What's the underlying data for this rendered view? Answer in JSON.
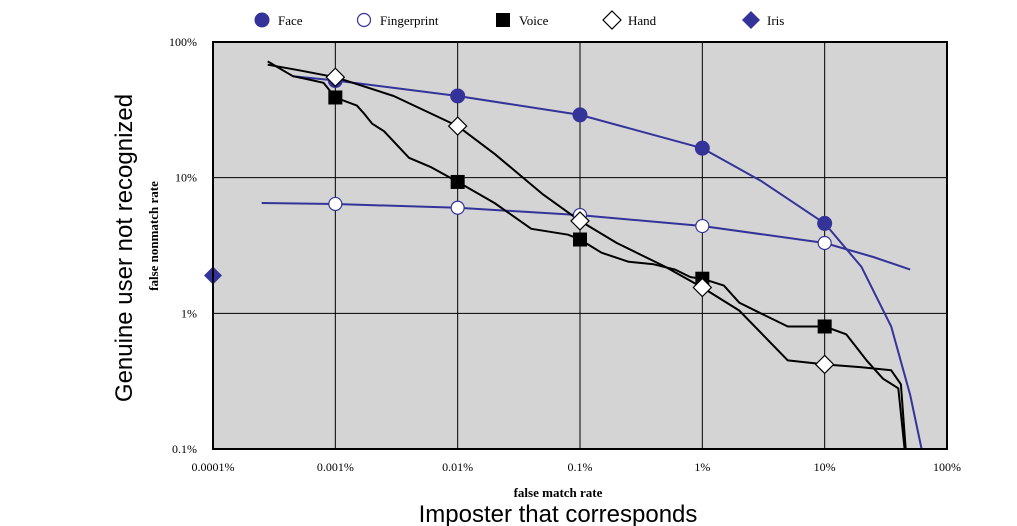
{
  "chart_data": {
    "type": "line",
    "title": "",
    "xlabel": "false match rate",
    "ylabel": "false nonmatch rate",
    "xlabel_secondary": "Imposter that corresponds",
    "ylabel_secondary": "Genuine user not recognized",
    "x_scale": "log",
    "y_scale": "log",
    "xlim": [
      0.0001,
      100
    ],
    "ylim": [
      0.1,
      100
    ],
    "grid": true,
    "legend_position": "top",
    "x_ticks": [
      {
        "value": 0.0001,
        "label": "0.0001%"
      },
      {
        "value": 0.001,
        "label": "0.001%"
      },
      {
        "value": 0.01,
        "label": "0.01%"
      },
      {
        "value": 0.1,
        "label": "0.1%"
      },
      {
        "value": 1,
        "label": "1%"
      },
      {
        "value": 10,
        "label": "10%"
      },
      {
        "value": 100,
        "label": "100%"
      }
    ],
    "y_ticks": [
      {
        "value": 100,
        "label": "100%"
      },
      {
        "value": 10,
        "label": "10%"
      },
      {
        "value": 1,
        "label": "1%"
      },
      {
        "value": 0.1,
        "label": "0.1%"
      }
    ],
    "series": [
      {
        "name": "Face",
        "marker": "filled-circle",
        "color": "#333399",
        "marker_color": "#333399",
        "line_color": "#333399",
        "points": [
          [
            0.001,
            52
          ],
          [
            0.01,
            40
          ],
          [
            0.1,
            29
          ],
          [
            1,
            16.5
          ],
          [
            10,
            4.6
          ]
        ],
        "curve": [
          [
            0.00045,
            56
          ],
          [
            0.001,
            52
          ],
          [
            0.01,
            40
          ],
          [
            0.1,
            29
          ],
          [
            1,
            16.5
          ],
          [
            3,
            9.5
          ],
          [
            10,
            4.6
          ],
          [
            20,
            2.2
          ],
          [
            35,
            0.8
          ],
          [
            50,
            0.25
          ],
          [
            62,
            0.1
          ]
        ]
      },
      {
        "name": "Fingerprint",
        "marker": "open-circle",
        "color": "#333399",
        "marker_color": "#333399",
        "line_color": "#333399",
        "points": [
          [
            0.001,
            6.4
          ],
          [
            0.01,
            6.0
          ],
          [
            0.1,
            5.3
          ],
          [
            1,
            4.4
          ],
          [
            10,
            3.3
          ]
        ],
        "curve": [
          [
            0.00025,
            6.5
          ],
          [
            0.001,
            6.4
          ],
          [
            0.01,
            6.0
          ],
          [
            0.1,
            5.3
          ],
          [
            1,
            4.4
          ],
          [
            10,
            3.3
          ],
          [
            25,
            2.6
          ],
          [
            50,
            2.1
          ]
        ]
      },
      {
        "name": "Voice",
        "marker": "filled-square",
        "color": "#000000",
        "marker_color": "#000000",
        "line_color": "#000000",
        "points": [
          [
            0.001,
            39
          ],
          [
            0.01,
            9.3
          ],
          [
            0.1,
            3.5
          ],
          [
            1,
            1.8
          ],
          [
            10,
            0.8
          ]
        ],
        "curve": [
          [
            0.00028,
            72
          ],
          [
            0.00045,
            56
          ],
          [
            0.0006,
            53
          ],
          [
            0.0008,
            50
          ],
          [
            0.001,
            39
          ],
          [
            0.0015,
            34
          ],
          [
            0.0017,
            30
          ],
          [
            0.002,
            25
          ],
          [
            0.0025,
            22
          ],
          [
            0.004,
            14
          ],
          [
            0.006,
            12
          ],
          [
            0.01,
            9.3
          ],
          [
            0.02,
            6.5
          ],
          [
            0.04,
            4.2
          ],
          [
            0.08,
            3.8
          ],
          [
            0.1,
            3.5
          ],
          [
            0.15,
            2.8
          ],
          [
            0.25,
            2.4
          ],
          [
            0.4,
            2.3
          ],
          [
            0.6,
            2.1
          ],
          [
            0.8,
            1.85
          ],
          [
            1,
            1.8
          ],
          [
            1.5,
            1.6
          ],
          [
            2,
            1.2
          ],
          [
            3,
            1.0
          ],
          [
            5,
            0.8
          ],
          [
            10,
            0.8
          ],
          [
            15,
            0.7
          ],
          [
            22,
            0.45
          ],
          [
            30,
            0.33
          ],
          [
            40,
            0.28
          ],
          [
            45,
            0.1
          ]
        ]
      },
      {
        "name": "Hand",
        "marker": "open-diamond",
        "color": "#000000",
        "marker_color": "#000000",
        "line_color": "#000000",
        "points": [
          [
            0.001,
            55
          ],
          [
            0.01,
            24
          ],
          [
            0.1,
            4.8
          ],
          [
            1,
            1.55
          ],
          [
            10,
            0.42
          ]
        ],
        "curve": [
          [
            0.00028,
            68
          ],
          [
            0.0005,
            62
          ],
          [
            0.001,
            55
          ],
          [
            0.003,
            40
          ],
          [
            0.01,
            24
          ],
          [
            0.02,
            15
          ],
          [
            0.05,
            7.5
          ],
          [
            0.1,
            4.8
          ],
          [
            0.2,
            3.3
          ],
          [
            0.5,
            2.2
          ],
          [
            1,
            1.55
          ],
          [
            2,
            1.05
          ],
          [
            5,
            0.45
          ],
          [
            10,
            0.42
          ],
          [
            20,
            0.4
          ],
          [
            35,
            0.38
          ],
          [
            42,
            0.3
          ],
          [
            46,
            0.1
          ]
        ]
      },
      {
        "name": "Iris",
        "marker": "filled-diamond",
        "color": "#333399",
        "marker_color": "#333399",
        "points": [
          [
            0.0001,
            1.9
          ]
        ]
      }
    ]
  }
}
